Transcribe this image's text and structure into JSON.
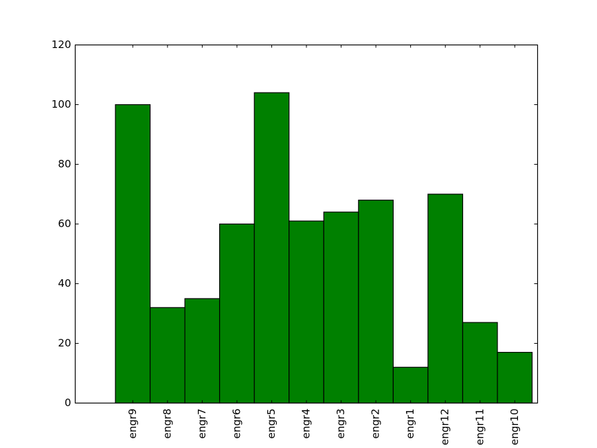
{
  "chart_data": {
    "type": "bar",
    "categories": [
      "engr9",
      "engr8",
      "engr7",
      "engr6",
      "engr5",
      "engr4",
      "engr3",
      "engr2",
      "engr1",
      "engr12",
      "engr11",
      "engr10"
    ],
    "values": [
      100,
      32,
      35,
      60,
      104,
      61,
      64,
      68,
      12,
      70,
      27,
      17
    ],
    "color": "#008000",
    "ylim": [
      0,
      120
    ],
    "yticks": [
      0,
      20,
      40,
      60,
      80,
      100,
      120
    ]
  }
}
